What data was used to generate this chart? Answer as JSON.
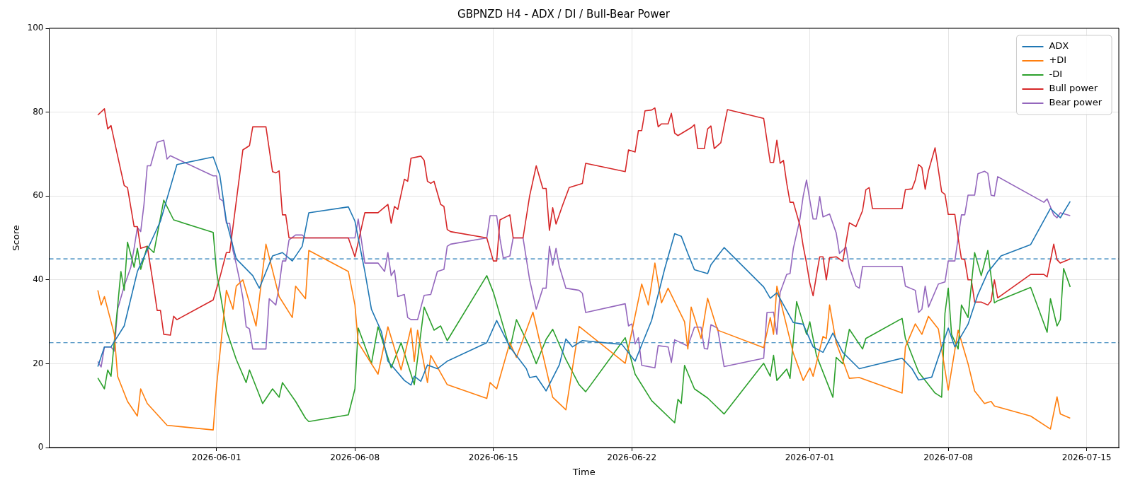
{
  "chart_data": {
    "type": "line",
    "title": "GBPNZD H4 - ADX / DI / Bull-Bear Power",
    "xlabel": "Time",
    "ylabel": "Score",
    "xlim": [
      "2026-05-23T13:00",
      "2026-07-16T15:00"
    ],
    "xticks": [
      "2026-06-01",
      "2026-06-08",
      "2026-06-15",
      "2026-06-22",
      "2026-07-01",
      "2026-07-08",
      "2026-07-15"
    ],
    "ylim": [
      0,
      100
    ],
    "yticks": [
      0,
      20,
      40,
      60,
      80,
      100
    ],
    "grid": true,
    "legend": "top right",
    "ref_lines": [
      {
        "axis": "y",
        "value": 45,
        "color": "#1f77b4",
        "line_style": "dashed"
      },
      {
        "axis": "y",
        "value": 25,
        "color": "#1f77b4",
        "line_style": "dashed"
      }
    ],
    "series": [
      {
        "name": "ADX",
        "color": "#1f77b4",
        "x": [
          "2026-05-26T00:00",
          "2026-05-26T08:00",
          "2026-05-26T16:00",
          "2026-05-27T08:00",
          "2026-05-28T00:00",
          "2026-05-29T04:00",
          "2026-05-30T00:00",
          "2026-05-31T20:00",
          "2026-06-01T04:00",
          "2026-06-01T12:00",
          "2026-06-02T00:00",
          "2026-06-02T20:00",
          "2026-06-03T04:00",
          "2026-06-03T20:00",
          "2026-06-04T08:00",
          "2026-06-04T20:00",
          "2026-06-05T08:00",
          "2026-06-05T16:00",
          "2026-06-07T16:00",
          "2026-06-08T00:00",
          "2026-06-08T12:00",
          "2026-06-08T20:00",
          "2026-06-09T08:00",
          "2026-06-09T16:00",
          "2026-06-10T12:00",
          "2026-06-10T20:00",
          "2026-06-11T00:00",
          "2026-06-11T08:00",
          "2026-06-11T16:00",
          "2026-06-12T04:00",
          "2026-06-12T16:00",
          "2026-06-14T16:00",
          "2026-06-15T04:00",
          "2026-06-15T20:00",
          "2026-06-16T16:00",
          "2026-06-16T20:00",
          "2026-06-17T04:00",
          "2026-06-17T16:00",
          "2026-06-18T08:00",
          "2026-06-18T16:00",
          "2026-06-19T00:00",
          "2026-06-19T12:00",
          "2026-06-21T12:00",
          "2026-06-22T04:00",
          "2026-06-23T00:00",
          "2026-06-23T16:00",
          "2026-06-24T04:00",
          "2026-06-24T12:00",
          "2026-06-24T20:00",
          "2026-06-25T04:00",
          "2026-06-25T20:00",
          "2026-06-26T00:00",
          "2026-06-26T16:00",
          "2026-06-28T16:00",
          "2026-06-29T00:00",
          "2026-06-29T08:00",
          "2026-06-30T04:00",
          "2026-06-30T16:00",
          "2026-07-01T04:00",
          "2026-07-01T16:00",
          "2026-07-02T04:00",
          "2026-07-02T16:00",
          "2026-07-03T12:00",
          "2026-07-05T16:00",
          "2026-07-06T04:00",
          "2026-07-06T12:00",
          "2026-07-07T04:00",
          "2026-07-07T12:00",
          "2026-07-08T00:00",
          "2026-07-08T08:00",
          "2026-07-09T00:00",
          "2026-07-09T12:00",
          "2026-07-10T00:00",
          "2026-07-10T16:00",
          "2026-07-12T04:00",
          "2026-07-13T04:00",
          "2026-07-13T16:00",
          "2026-07-14T04:00"
        ],
        "values": [
          19.3,
          24,
          24,
          29,
          42,
          54,
          67.5,
          69.3,
          65,
          54,
          45,
          41,
          38,
          45.7,
          46.5,
          44.5,
          48,
          56,
          57.4,
          54,
          42,
          33,
          27.7,
          20.6,
          16,
          14.9,
          17,
          15.8,
          19.7,
          18.8,
          20.6,
          25,
          30.3,
          24,
          18.8,
          16.7,
          17,
          13.5,
          19.7,
          25.9,
          24,
          25.5,
          24.6,
          20.6,
          30.3,
          42.7,
          51,
          50.4,
          46.3,
          42.4,
          41.5,
          43.6,
          47.7,
          38.3,
          35.6,
          36.9,
          29.8,
          29.4,
          24,
          22.7,
          27.3,
          22.7,
          18.8,
          21.3,
          18.8,
          16.1,
          16.8,
          21.5,
          28.5,
          24,
          29.4,
          36.5,
          41.8,
          45.7,
          48.4,
          57,
          54.8,
          58.7
        ]
      },
      {
        "name": "+DI",
        "color": "#ff7f0e",
        "x": [
          "2026-05-26T00:00",
          "2026-05-26T04:00",
          "2026-05-26T08:00",
          "2026-05-26T20:00",
          "2026-05-27T00:00",
          "2026-05-27T12:00",
          "2026-05-28T00:00",
          "2026-05-28T04:00",
          "2026-05-28T12:00",
          "2026-05-29T12:00",
          "2026-05-31T20:00",
          "2026-06-01T00:00",
          "2026-06-01T12:00",
          "2026-06-01T20:00",
          "2026-06-02T00:00",
          "2026-06-02T08:00",
          "2026-06-03T00:00",
          "2026-06-03T12:00",
          "2026-06-04T04:00",
          "2026-06-04T20:00",
          "2026-06-05T00:00",
          "2026-06-05T12:00",
          "2026-06-05T16:00",
          "2026-06-07T16:00",
          "2026-06-08T00:00",
          "2026-06-08T04:00",
          "2026-06-09T04:00",
          "2026-06-09T16:00",
          "2026-06-10T08:00",
          "2026-06-10T20:00",
          "2026-06-11T00:00",
          "2026-06-11T04:00",
          "2026-06-11T16:00",
          "2026-06-11T20:00",
          "2026-06-12T16:00",
          "2026-06-14T16:00",
          "2026-06-14T20:00",
          "2026-06-15T04:00",
          "2026-06-15T20:00",
          "2026-06-16T04:00",
          "2026-06-17T00:00",
          "2026-06-18T00:00",
          "2026-06-18T16:00",
          "2026-06-19T08:00",
          "2026-06-21T16:00",
          "2026-06-22T12:00",
          "2026-06-22T20:00",
          "2026-06-23T04:00",
          "2026-06-23T12:00",
          "2026-06-23T20:00",
          "2026-06-24T16:00",
          "2026-06-24T20:00",
          "2026-06-25T00:00",
          "2026-06-25T12:00",
          "2026-06-25T20:00",
          "2026-06-26T08:00",
          "2026-06-28T16:00",
          "2026-06-29T00:00",
          "2026-06-29T04:00",
          "2026-06-29T08:00",
          "2026-06-30T04:00",
          "2026-06-30T16:00",
          "2026-07-01T00:00",
          "2026-07-01T04:00",
          "2026-07-01T16:00",
          "2026-07-01T20:00",
          "2026-07-02T00:00",
          "2026-07-02T08:00",
          "2026-07-03T00:00",
          "2026-07-03T12:00",
          "2026-07-05T16:00",
          "2026-07-05T20:00",
          "2026-07-06T08:00",
          "2026-07-06T16:00",
          "2026-07-07T00:00",
          "2026-07-07T12:00",
          "2026-07-08T00:00",
          "2026-07-08T12:00",
          "2026-07-09T00:00",
          "2026-07-09T08:00",
          "2026-07-09T20:00",
          "2026-07-10T04:00",
          "2026-07-10T08:00",
          "2026-07-12T04:00",
          "2026-07-13T04:00",
          "2026-07-13T12:00",
          "2026-07-13T16:00",
          "2026-07-14T04:00"
        ],
        "values": [
          37.5,
          34,
          36,
          27,
          17,
          11,
          7.5,
          14,
          10.5,
          5.3,
          4.2,
          14.5,
          37.5,
          33,
          38.5,
          40,
          29,
          48.5,
          36,
          31,
          38.5,
          35.5,
          47,
          42,
          34,
          25,
          17.5,
          28.8,
          18.5,
          28.5,
          20.5,
          28,
          15.5,
          22,
          15,
          11.7,
          15.5,
          14,
          25,
          21.5,
          32.3,
          12,
          9,
          28.9,
          20.1,
          39,
          34,
          44,
          34.5,
          38,
          30,
          23.5,
          33.5,
          26,
          35.6,
          28,
          23.8,
          31,
          27,
          38.5,
          22.5,
          16,
          19,
          17,
          26.5,
          26,
          34,
          25,
          16.5,
          16.7,
          13,
          24,
          29.5,
          27,
          31.3,
          28.3,
          13.7,
          28,
          20,
          13.5,
          10.5,
          11,
          9.9,
          7.5,
          4.4,
          12.1,
          8,
          7
        ]
      },
      {
        "name": "-DI",
        "color": "#2ca02c",
        "x": [
          "2026-05-26T00:00",
          "2026-05-26T08:00",
          "2026-05-26T12:00",
          "2026-05-26T16:00",
          "2026-05-27T04:00",
          "2026-05-27T08:00",
          "2026-05-27T12:00",
          "2026-05-27T20:00",
          "2026-05-28T00:00",
          "2026-05-28T04:00",
          "2026-05-28T12:00",
          "2026-05-28T20:00",
          "2026-05-29T08:00",
          "2026-05-29T20:00",
          "2026-05-31T20:00",
          "2026-06-01T00:00",
          "2026-06-01T12:00",
          "2026-06-02T00:00",
          "2026-06-02T12:00",
          "2026-06-02T16:00",
          "2026-06-03T08:00",
          "2026-06-03T20:00",
          "2026-06-04T04:00",
          "2026-06-04T08:00",
          "2026-06-05T00:00",
          "2026-06-05T12:00",
          "2026-06-05T16:00",
          "2026-06-07T16:00",
          "2026-06-08T00:00",
          "2026-06-08T04:00",
          "2026-06-08T20:00",
          "2026-06-09T04:00",
          "2026-06-09T20:00",
          "2026-06-10T08:00",
          "2026-06-11T00:00",
          "2026-06-11T12:00",
          "2026-06-12T00:00",
          "2026-06-12T08:00",
          "2026-06-12T16:00",
          "2026-06-14T16:00",
          "2026-06-15T00:00",
          "2026-06-15T20:00",
          "2026-06-16T04:00",
          "2026-06-16T20:00",
          "2026-06-17T04:00",
          "2026-06-17T16:00",
          "2026-06-18T00:00",
          "2026-06-18T16:00",
          "2026-06-19T08:00",
          "2026-06-19T16:00",
          "2026-06-21T16:00",
          "2026-06-22T04:00",
          "2026-06-23T00:00",
          "2026-06-24T04:00",
          "2026-06-24T08:00",
          "2026-06-24T12:00",
          "2026-06-24T16:00",
          "2026-06-25T04:00",
          "2026-06-25T20:00",
          "2026-06-26T16:00",
          "2026-06-28T16:00",
          "2026-06-29T00:00",
          "2026-06-29T04:00",
          "2026-06-29T08:00",
          "2026-06-29T20:00",
          "2026-06-30T00:00",
          "2026-06-30T08:00",
          "2026-06-30T20:00",
          "2026-07-01T00:00",
          "2026-07-01T08:00",
          "2026-07-02T04:00",
          "2026-07-02T08:00",
          "2026-07-02T16:00",
          "2026-07-03T00:00",
          "2026-07-03T16:00",
          "2026-07-03T20:00",
          "2026-07-05T16:00",
          "2026-07-05T20:00",
          "2026-07-06T12:00",
          "2026-07-07T08:00",
          "2026-07-07T16:00",
          "2026-07-07T20:00",
          "2026-07-08T00:00",
          "2026-07-08T04:00",
          "2026-07-08T12:00",
          "2026-07-08T16:00",
          "2026-07-09T00:00",
          "2026-07-09T08:00",
          "2026-07-09T16:00",
          "2026-07-10T00:00",
          "2026-07-10T08:00",
          "2026-07-10T12:00",
          "2026-07-12T04:00",
          "2026-07-13T00:00",
          "2026-07-13T04:00",
          "2026-07-13T12:00",
          "2026-07-13T16:00",
          "2026-07-13T20:00",
          "2026-07-14T04:00"
        ],
        "values": [
          16.6,
          14,
          18.5,
          17,
          42,
          37.5,
          49,
          43,
          47.5,
          42.5,
          48,
          46.5,
          59,
          54.3,
          51.3,
          42,
          28,
          21,
          15.5,
          18.5,
          10.5,
          14,
          12,
          15.5,
          11,
          7,
          6.2,
          7.8,
          14,
          28.5,
          20,
          28.8,
          19,
          25,
          15,
          33.5,
          28,
          29,
          25.5,
          41,
          37,
          23.5,
          30.5,
          24,
          20,
          25.8,
          28.2,
          21,
          15,
          13.3,
          26.2,
          17.5,
          11.2,
          5.9,
          11.5,
          10.5,
          19.6,
          14,
          11.8,
          8,
          20.1,
          17,
          22,
          16,
          18.7,
          16.5,
          34.8,
          27,
          30,
          22,
          12,
          21.5,
          20,
          28.2,
          23.5,
          26,
          30.8,
          26,
          18,
          13,
          12,
          32,
          38,
          27,
          23.5,
          34,
          31,
          46.5,
          41,
          47,
          34.5,
          35,
          38.2,
          27.5,
          35.5,
          29,
          30.5,
          42.7,
          38.3
        ]
      },
      {
        "name": "Bull power",
        "color": "#d62728",
        "x": [
          "2026-05-26T00:00",
          "2026-05-26T08:00",
          "2026-05-26T12:00",
          "2026-05-26T16:00",
          "2026-05-27T04:00",
          "2026-05-27T08:00",
          "2026-05-27T12:00",
          "2026-05-27T20:00",
          "2026-05-28T00:00",
          "2026-05-28T04:00",
          "2026-05-28T12:00",
          "2026-05-28T20:00",
          "2026-05-29T00:00",
          "2026-05-29T04:00",
          "2026-05-29T08:00",
          "2026-05-29T16:00",
          "2026-05-29T20:00",
          "2026-05-30T00:00",
          "2026-05-31T20:00",
          "2026-06-01T04:00",
          "2026-06-01T12:00",
          "2026-06-01T16:00",
          "2026-06-02T08:00",
          "2026-06-02T16:00",
          "2026-06-02T20:00",
          "2026-06-03T12:00",
          "2026-06-03T20:00",
          "2026-06-04T00:00",
          "2026-06-04T04:00",
          "2026-06-04T08:00",
          "2026-06-04T12:00",
          "2026-06-04T16:00",
          "2026-06-05T08:00",
          "2026-06-07T16:00",
          "2026-06-08T00:00",
          "2026-06-08T12:00",
          "2026-06-09T04:00",
          "2026-06-09T16:00",
          "2026-06-09T20:00",
          "2026-06-10T00:00",
          "2026-06-10T04:00",
          "2026-06-10T12:00",
          "2026-06-10T16:00",
          "2026-06-10T20:00",
          "2026-06-11T08:00",
          "2026-06-11T12:00",
          "2026-06-11T16:00",
          "2026-06-11T20:00",
          "2026-06-12T00:00",
          "2026-06-12T08:00",
          "2026-06-12T12:00",
          "2026-06-12T16:00",
          "2026-06-12T20:00",
          "2026-06-14T16:00",
          "2026-06-15T00:00",
          "2026-06-15T04:00",
          "2026-06-15T08:00",
          "2026-06-15T20:00",
          "2026-06-16T00:00",
          "2026-06-16T12:00",
          "2026-06-16T20:00",
          "2026-06-17T04:00",
          "2026-06-17T12:00",
          "2026-06-17T16:00",
          "2026-06-17T20:00",
          "2026-06-18T00:00",
          "2026-06-18T04:00",
          "2026-06-18T12:00",
          "2026-06-18T20:00",
          "2026-06-19T12:00",
          "2026-06-19T16:00",
          "2026-06-21T16:00",
          "2026-06-21T20:00",
          "2026-06-22T04:00",
          "2026-06-22T08:00",
          "2026-06-22T12:00",
          "2026-06-22T16:00",
          "2026-06-23T00:00",
          "2026-06-23T04:00",
          "2026-06-23T08:00",
          "2026-06-23T12:00",
          "2026-06-23T20:00",
          "2026-06-24T00:00",
          "2026-06-24T04:00",
          "2026-06-24T08:00",
          "2026-06-25T00:00",
          "2026-06-25T04:00",
          "2026-06-25T08:00",
          "2026-06-25T16:00",
          "2026-06-25T20:00",
          "2026-06-26T00:00",
          "2026-06-26T04:00",
          "2026-06-26T12:00",
          "2026-06-26T16:00",
          "2026-06-26T20:00",
          "2026-06-28T16:00",
          "2026-06-29T00:00",
          "2026-06-29T04:00",
          "2026-06-29T08:00",
          "2026-06-29T12:00",
          "2026-06-29T16:00",
          "2026-06-29T20:00",
          "2026-06-30T00:00",
          "2026-06-30T04:00",
          "2026-06-30T12:00",
          "2026-06-30T16:00",
          "2026-06-30T20:00",
          "2026-07-01T00:00",
          "2026-07-01T04:00",
          "2026-07-01T08:00",
          "2026-07-01T12:00",
          "2026-07-01T16:00",
          "2026-07-01T20:00",
          "2026-07-02T00:00",
          "2026-07-02T08:00",
          "2026-07-02T16:00",
          "2026-07-03T00:00",
          "2026-07-03T08:00",
          "2026-07-03T16:00",
          "2026-07-03T20:00",
          "2026-07-04T00:00",
          "2026-07-04T04:00",
          "2026-07-05T16:00",
          "2026-07-05T20:00",
          "2026-07-06T04:00",
          "2026-07-06T08:00",
          "2026-07-06T12:00",
          "2026-07-06T16:00",
          "2026-07-06T20:00",
          "2026-07-07T00:00",
          "2026-07-07T08:00",
          "2026-07-07T16:00",
          "2026-07-07T20:00",
          "2026-07-08T00:00",
          "2026-07-08T08:00",
          "2026-07-08T12:00",
          "2026-07-08T16:00",
          "2026-07-08T20:00",
          "2026-07-09T00:00",
          "2026-07-09T04:00",
          "2026-07-09T08:00",
          "2026-07-09T16:00",
          "2026-07-10T00:00",
          "2026-07-10T04:00",
          "2026-07-10T08:00",
          "2026-07-10T12:00",
          "2026-07-12T04:00",
          "2026-07-12T20:00",
          "2026-07-13T00:00",
          "2026-07-13T08:00",
          "2026-07-13T12:00",
          "2026-07-13T16:00",
          "2026-07-14T04:00"
        ],
        "values": [
          79.3,
          80.8,
          76,
          76.8,
          66,
          62.5,
          62,
          52.7,
          52.7,
          47.5,
          48,
          38,
          32.7,
          32.7,
          27,
          26.8,
          31.3,
          30.5,
          35.2,
          40.5,
          46.5,
          46.5,
          71,
          72,
          76.5,
          76.5,
          65.8,
          65.5,
          66,
          55.5,
          55.5,
          50,
          50,
          50,
          45.5,
          56,
          56,
          58,
          53.5,
          57.5,
          56.8,
          64,
          63.5,
          69,
          69.5,
          68.5,
          63.5,
          63,
          63.5,
          58,
          57.5,
          52,
          51.5,
          50,
          44.5,
          44.5,
          54.3,
          55.5,
          50,
          50,
          60,
          67.2,
          61.8,
          61.8,
          51.8,
          57.2,
          53.3,
          57.8,
          62,
          63,
          67.8,
          65.8,
          71,
          70.5,
          75.6,
          75.6,
          80.3,
          80.5,
          81,
          76.5,
          77.2,
          77.2,
          79.7,
          75,
          74.4,
          76.3,
          77,
          71.3,
          71.3,
          76,
          76.7,
          71.3,
          72.7,
          76.7,
          80.6,
          78.5,
          68,
          68,
          73.3,
          67.8,
          68.5,
          63,
          58.5,
          58.5,
          53,
          48,
          44,
          39.2,
          36.2,
          41,
          45.5,
          45.5,
          40,
          45.3,
          45.5,
          44.4,
          53.6,
          52.7,
          56.5,
          61.5,
          62,
          57,
          57,
          61.5,
          61.7,
          63.8,
          67.5,
          66.8,
          61.6,
          66,
          71.5,
          61,
          60.4,
          55.6,
          55.6,
          50,
          45,
          44.8,
          40,
          40,
          34.7,
          34.7,
          34,
          35,
          40,
          35.7,
          41.3,
          41.3,
          40.7,
          48.5,
          44.8,
          44,
          45
        ]
      },
      {
        "name": "Bear power",
        "color": "#9467bd",
        "x": [
          "2026-05-26T00:00",
          "2026-05-26T04:00",
          "2026-05-26T08:00",
          "2026-05-26T16:00",
          "2026-05-26T20:00",
          "2026-05-27T00:00",
          "2026-05-27T08:00",
          "2026-05-27T16:00",
          "2026-05-27T20:00",
          "2026-05-28T00:00",
          "2026-05-28T04:00",
          "2026-05-28T08:00",
          "2026-05-28T12:00",
          "2026-05-28T16:00",
          "2026-05-29T00:00",
          "2026-05-29T08:00",
          "2026-05-29T12:00",
          "2026-05-29T16:00",
          "2026-05-31T20:00",
          "2026-06-01T00:00",
          "2026-06-01T04:00",
          "2026-06-01T08:00",
          "2026-06-01T12:00",
          "2026-06-01T16:00",
          "2026-06-01T20:00",
          "2026-06-02T00:00",
          "2026-06-02T04:00",
          "2026-06-02T08:00",
          "2026-06-02T12:00",
          "2026-06-02T16:00",
          "2026-06-02T20:00",
          "2026-06-03T12:00",
          "2026-06-03T16:00",
          "2026-06-04T00:00",
          "2026-06-04T04:00",
          "2026-06-04T08:00",
          "2026-06-04T12:00",
          "2026-06-04T16:00",
          "2026-06-05T00:00",
          "2026-06-05T08:00",
          "2026-06-05T12:00",
          "2026-06-08T00:00",
          "2026-06-08T04:00",
          "2026-06-08T12:00",
          "2026-06-09T04:00",
          "2026-06-09T12:00",
          "2026-06-09T16:00",
          "2026-06-09T20:00",
          "2026-06-10T00:00",
          "2026-06-10T04:00",
          "2026-06-10T12:00",
          "2026-06-10T16:00",
          "2026-06-10T20:00",
          "2026-06-11T04:00",
          "2026-06-11T12:00",
          "2026-06-11T20:00",
          "2026-06-12T04:00",
          "2026-06-12T12:00",
          "2026-06-12T16:00",
          "2026-06-12T20:00",
          "2026-06-14T16:00",
          "2026-06-14T20:00",
          "2026-06-15T04:00",
          "2026-06-15T08:00",
          "2026-06-15T12:00",
          "2026-06-15T20:00",
          "2026-06-16T00:00",
          "2026-06-16T12:00",
          "2026-06-16T20:00",
          "2026-06-17T04:00",
          "2026-06-17T12:00",
          "2026-06-17T16:00",
          "2026-06-17T20:00",
          "2026-06-18T00:00",
          "2026-06-18T04:00",
          "2026-06-18T08:00",
          "2026-06-18T16:00",
          "2026-06-19T08:00",
          "2026-06-19T12:00",
          "2026-06-19T16:00",
          "2026-06-21T16:00",
          "2026-06-21T20:00",
          "2026-06-22T00:00",
          "2026-06-22T04:00",
          "2026-06-22T08:00",
          "2026-06-22T12:00",
          "2026-06-23T04:00",
          "2026-06-23T08:00",
          "2026-06-23T20:00",
          "2026-06-24T00:00",
          "2026-06-24T04:00",
          "2026-06-24T20:00",
          "2026-06-25T04:00",
          "2026-06-25T12:00",
          "2026-06-25T16:00",
          "2026-06-25T20:00",
          "2026-06-26T00:00",
          "2026-06-26T08:00",
          "2026-06-26T16:00",
          "2026-06-28T16:00",
          "2026-06-28T20:00",
          "2026-06-29T04:00",
          "2026-06-29T08:00",
          "2026-06-29T12:00",
          "2026-06-29T20:00",
          "2026-06-30T00:00",
          "2026-06-30T04:00",
          "2026-06-30T12:00",
          "2026-06-30T16:00",
          "2026-06-30T20:00",
          "2026-07-01T00:00",
          "2026-07-01T04:00",
          "2026-07-01T08:00",
          "2026-07-01T12:00",
          "2026-07-01T16:00",
          "2026-07-02T00:00",
          "2026-07-02T08:00",
          "2026-07-02T12:00",
          "2026-07-02T20:00",
          "2026-07-03T00:00",
          "2026-07-03T08:00",
          "2026-07-03T12:00",
          "2026-07-03T16:00",
          "2026-07-05T16:00",
          "2026-07-05T20:00",
          "2026-07-06T08:00",
          "2026-07-06T12:00",
          "2026-07-06T16:00",
          "2026-07-06T20:00",
          "2026-07-07T00:00",
          "2026-07-07T12:00",
          "2026-07-07T20:00",
          "2026-07-08T00:00",
          "2026-07-08T08:00",
          "2026-07-08T12:00",
          "2026-07-08T16:00",
          "2026-07-08T20:00",
          "2026-07-09T00:00",
          "2026-07-09T08:00",
          "2026-07-09T12:00",
          "2026-07-09T20:00",
          "2026-07-10T00:00",
          "2026-07-10T04:00",
          "2026-07-10T08:00",
          "2026-07-10T12:00",
          "2026-07-12T20:00",
          "2026-07-13T00:00",
          "2026-07-13T08:00",
          "2026-07-13T12:00",
          "2026-07-13T16:00",
          "2026-07-14T04:00"
        ],
        "values": [
          20.5,
          19.2,
          24,
          24,
          23,
          33,
          38.5,
          43,
          47.5,
          52.5,
          51.5,
          58,
          67.2,
          67.2,
          72.8,
          73.3,
          68.8,
          69.6,
          64.8,
          64.8,
          59.3,
          58.8,
          53.5,
          53.5,
          47,
          43.7,
          40,
          35.7,
          28.8,
          28.3,
          23.5,
          23.5,
          35.5,
          34,
          38.5,
          44.5,
          44.5,
          49.5,
          50.7,
          50.7,
          50,
          50,
          54.5,
          44,
          44,
          42,
          46.5,
          41,
          42.3,
          36,
          36.5,
          31,
          30.5,
          30.5,
          36.3,
          36.5,
          42,
          42.5,
          48,
          48.5,
          50,
          55.3,
          55.3,
          49.8,
          45.2,
          45.7,
          50,
          50,
          40,
          33,
          38,
          38,
          48,
          43.5,
          47.5,
          43.2,
          38,
          37.5,
          36.8,
          32.2,
          34.3,
          29,
          29.5,
          24.7,
          26.2,
          19.6,
          19,
          24.3,
          24,
          20.3,
          25.7,
          24.2,
          28.7,
          28.7,
          23.6,
          23.5,
          29.3,
          28.5,
          19.3,
          21.3,
          32.2,
          32.3,
          27,
          37,
          41.3,
          41.5,
          47.5,
          54.5,
          60,
          63.8,
          59,
          54.5,
          54.5,
          59.9,
          55,
          55.7,
          51.2,
          46.3,
          47.8,
          43,
          38.5,
          38,
          43.2,
          43.2,
          38.5,
          37.5,
          32.2,
          33,
          38.5,
          33.5,
          39,
          39.5,
          44.5,
          44.5,
          50,
          55.5,
          55.5,
          60.2,
          60.2,
          65.3,
          65.9,
          65.4,
          60.2,
          60,
          64.6,
          58.5,
          59.3,
          55.5,
          54.8,
          56,
          55.3
        ]
      }
    ]
  }
}
